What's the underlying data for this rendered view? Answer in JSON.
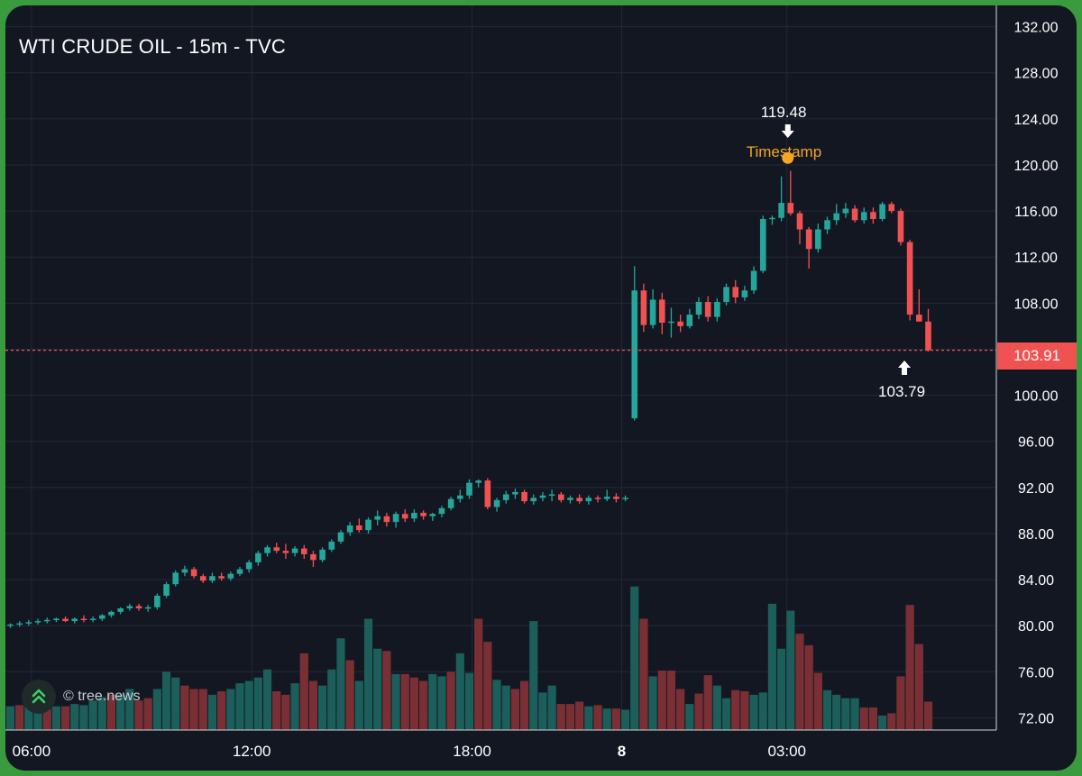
{
  "title": "WTI CRUDE OIL - 15m - TVC",
  "watermark": "© tree.news",
  "colors": {
    "background": "#131722",
    "grid": "#232836",
    "up": "#26a69a",
    "down": "#f05252",
    "vol_up": "#1b5e5a",
    "vol_down": "#7a2f35",
    "axis_text": "#ffffff",
    "timestamp": "#f5a623",
    "price_line": "#f05252"
  },
  "annotations": {
    "high_label": "119.48",
    "low_label": "103.79",
    "timestamp_label": "Timestamp"
  },
  "chart_data": {
    "type": "candlestick",
    "title": "WTI CRUDE OIL - 15m - TVC",
    "ylim": [
      70.0,
      134.0
    ],
    "y_ticks": [
      72,
      76,
      80,
      84,
      88,
      92,
      96,
      100,
      104,
      108,
      112,
      116,
      120,
      124,
      128,
      132
    ],
    "y_tick_labels": [
      "72.00",
      "76.00",
      "80.00",
      "84.00",
      "88.00",
      "92.00",
      "96.00",
      "100.00",
      "",
      "108.00",
      "112.00",
      "116.00",
      "120.00",
      "124.00",
      "128.00",
      "132.00"
    ],
    "x_labels": [
      {
        "index": 2.3,
        "label": "06:00",
        "bold": false
      },
      {
        "index": 26.3,
        "label": "12:00",
        "bold": false
      },
      {
        "index": 50.3,
        "label": "18:00",
        "bold": false
      },
      {
        "index": 66.6,
        "label": "8",
        "bold": true
      },
      {
        "index": 84.6,
        "label": "03:00",
        "bold": false
      }
    ],
    "last_price": 103.91,
    "last_price_label": "103.91",
    "high_marker": {
      "index": 84.7,
      "value": 119.48
    },
    "low_marker": {
      "index": 97.4,
      "value": 103.79
    },
    "timestamp_marker": {
      "index": 84.7,
      "value": 120.6
    },
    "candles": [
      [
        80.0,
        80.2,
        79.8,
        80.1
      ],
      [
        80.1,
        80.4,
        79.9,
        80.2
      ],
      [
        80.2,
        80.5,
        80.0,
        80.3
      ],
      [
        80.3,
        80.6,
        80.1,
        80.4
      ],
      [
        80.4,
        80.7,
        80.2,
        80.5
      ],
      [
        80.5,
        80.7,
        80.3,
        80.6
      ],
      [
        80.6,
        80.8,
        80.3,
        80.4
      ],
      [
        80.4,
        80.7,
        80.2,
        80.6
      ],
      [
        80.6,
        80.9,
        80.3,
        80.5
      ],
      [
        80.5,
        80.8,
        80.3,
        80.6
      ],
      [
        80.6,
        81.0,
        80.4,
        80.9
      ],
      [
        80.9,
        81.3,
        80.7,
        81.2
      ],
      [
        81.2,
        81.6,
        81.0,
        81.5
      ],
      [
        81.5,
        81.9,
        81.3,
        81.7
      ],
      [
        81.7,
        81.9,
        81.3,
        81.5
      ],
      [
        81.5,
        81.8,
        81.2,
        81.6
      ],
      [
        81.6,
        82.8,
        81.4,
        82.6
      ],
      [
        82.6,
        83.8,
        82.4,
        83.6
      ],
      [
        83.6,
        84.8,
        83.4,
        84.6
      ],
      [
        84.6,
        85.2,
        84.3,
        84.9
      ],
      [
        84.9,
        85.1,
        84.1,
        84.3
      ],
      [
        84.3,
        84.5,
        83.7,
        83.9
      ],
      [
        83.9,
        84.6,
        83.7,
        84.3
      ],
      [
        84.3,
        84.6,
        83.9,
        84.1
      ],
      [
        84.1,
        84.7,
        83.9,
        84.5
      ],
      [
        84.5,
        85.1,
        84.3,
        84.9
      ],
      [
        84.9,
        85.7,
        84.6,
        85.5
      ],
      [
        85.5,
        86.5,
        85.2,
        86.3
      ],
      [
        86.3,
        87.0,
        86.0,
        86.8
      ],
      [
        86.8,
        87.2,
        86.3,
        86.5
      ],
      [
        86.5,
        87.1,
        85.8,
        86.3
      ],
      [
        86.3,
        86.9,
        86.0,
        86.7
      ],
      [
        86.7,
        87.0,
        85.8,
        86.2
      ],
      [
        86.2,
        86.5,
        85.1,
        85.7
      ],
      [
        85.7,
        86.8,
        85.5,
        86.6
      ],
      [
        86.6,
        87.5,
        86.4,
        87.3
      ],
      [
        87.3,
        88.3,
        87.1,
        88.1
      ],
      [
        88.1,
        89.0,
        87.8,
        88.7
      ],
      [
        88.7,
        89.3,
        88.1,
        88.3
      ],
      [
        88.3,
        89.4,
        88.0,
        89.2
      ],
      [
        89.2,
        90.0,
        88.7,
        89.5
      ],
      [
        89.5,
        89.8,
        88.6,
        89.0
      ],
      [
        89.0,
        89.9,
        88.5,
        89.7
      ],
      [
        89.7,
        90.1,
        89.0,
        89.3
      ],
      [
        89.3,
        90.1,
        89.0,
        89.8
      ],
      [
        89.8,
        90.0,
        89.2,
        89.5
      ],
      [
        89.5,
        89.8,
        89.1,
        89.7
      ],
      [
        89.7,
        90.4,
        89.4,
        90.2
      ],
      [
        90.2,
        91.2,
        90.0,
        91.0
      ],
      [
        91.0,
        91.8,
        90.7,
        91.3
      ],
      [
        91.3,
        92.7,
        91.0,
        92.4
      ],
      [
        92.4,
        92.7,
        92.0,
        92.6
      ],
      [
        92.6,
        92.8,
        90.1,
        90.3
      ],
      [
        90.3,
        91.1,
        89.9,
        90.9
      ],
      [
        90.9,
        91.7,
        90.6,
        91.4
      ],
      [
        91.4,
        91.9,
        91.0,
        91.6
      ],
      [
        91.6,
        91.8,
        90.6,
        90.8
      ],
      [
        90.8,
        91.4,
        90.5,
        91.1
      ],
      [
        91.1,
        91.6,
        90.8,
        91.3
      ],
      [
        91.3,
        91.8,
        90.8,
        91.4
      ],
      [
        91.4,
        91.6,
        90.7,
        90.9
      ],
      [
        90.9,
        91.3,
        90.6,
        91.1
      ],
      [
        91.1,
        91.4,
        90.6,
        90.8
      ],
      [
        90.8,
        91.3,
        90.5,
        91.1
      ],
      [
        91.1,
        91.3,
        90.7,
        91.0
      ],
      [
        91.0,
        91.8,
        90.8,
        91.2
      ],
      [
        91.2,
        91.5,
        90.7,
        91.0
      ],
      [
        91.0,
        91.3,
        90.8,
        91.1
      ],
      [
        98.0,
        111.2,
        97.8,
        109.1
      ],
      [
        109.1,
        109.7,
        105.5,
        106.1
      ],
      [
        106.1,
        109.2,
        105.8,
        108.3
      ],
      [
        108.3,
        108.9,
        105.3,
        106.3
      ],
      [
        106.3,
        107.6,
        105.0,
        106.4
      ],
      [
        106.4,
        107.0,
        105.5,
        106.0
      ],
      [
        106.0,
        107.5,
        105.8,
        107.0
      ],
      [
        107.0,
        108.5,
        106.6,
        108.1
      ],
      [
        108.1,
        108.6,
        106.4,
        106.8
      ],
      [
        106.8,
        108.4,
        106.4,
        108.1
      ],
      [
        108.1,
        109.7,
        107.8,
        109.4
      ],
      [
        109.4,
        110.0,
        108.0,
        108.5
      ],
      [
        108.5,
        109.5,
        108.2,
        109.1
      ],
      [
        109.1,
        111.2,
        108.8,
        110.8
      ],
      [
        110.8,
        115.6,
        110.6,
        115.3
      ],
      [
        115.3,
        115.6,
        114.8,
        115.4
      ],
      [
        115.4,
        119.0,
        115.1,
        116.7
      ],
      [
        116.7,
        119.48,
        115.6,
        115.8
      ],
      [
        115.8,
        116.0,
        113.1,
        114.4
      ],
      [
        114.4,
        114.6,
        111.0,
        112.7
      ],
      [
        112.7,
        114.9,
        112.4,
        114.4
      ],
      [
        114.4,
        115.5,
        114.0,
        115.2
      ],
      [
        115.2,
        116.6,
        114.8,
        115.8
      ],
      [
        115.8,
        116.7,
        115.4,
        116.2
      ],
      [
        116.2,
        116.5,
        115.0,
        115.2
      ],
      [
        115.2,
        116.3,
        114.9,
        115.9
      ],
      [
        115.9,
        116.3,
        114.9,
        115.3
      ],
      [
        115.3,
        116.8,
        115.1,
        116.6
      ],
      [
        116.6,
        116.8,
        115.8,
        116.0
      ],
      [
        116.0,
        116.2,
        113.0,
        113.3
      ],
      [
        113.3,
        113.5,
        106.5,
        107.0
      ],
      [
        107.0,
        109.2,
        106.4,
        106.4
      ],
      [
        106.4,
        107.5,
        103.79,
        103.91
      ]
    ],
    "volumes": [
      [
        73.0,
        1
      ],
      [
        73.1,
        0
      ],
      [
        73.4,
        1
      ],
      [
        73.5,
        1
      ],
      [
        73.5,
        0
      ],
      [
        73.0,
        1
      ],
      [
        73.0,
        0
      ],
      [
        73.2,
        1
      ],
      [
        73.1,
        1
      ],
      [
        73.5,
        1
      ],
      [
        73.8,
        1
      ],
      [
        74.0,
        0
      ],
      [
        74.0,
        1
      ],
      [
        74.5,
        1
      ],
      [
        73.5,
        0
      ],
      [
        73.7,
        0
      ],
      [
        74.5,
        1
      ],
      [
        76.0,
        1
      ],
      [
        75.5,
        1
      ],
      [
        74.8,
        0
      ],
      [
        74.5,
        0
      ],
      [
        74.5,
        0
      ],
      [
        74.0,
        1
      ],
      [
        74.3,
        0
      ],
      [
        74.5,
        1
      ],
      [
        75.0,
        1
      ],
      [
        75.2,
        1
      ],
      [
        75.5,
        1
      ],
      [
        76.2,
        1
      ],
      [
        74.3,
        0
      ],
      [
        74.0,
        0
      ],
      [
        75.0,
        1
      ],
      [
        77.6,
        0
      ],
      [
        75.2,
        0
      ],
      [
        74.8,
        1
      ],
      [
        76.2,
        1
      ],
      [
        78.9,
        1
      ],
      [
        77.0,
        0
      ],
      [
        75.2,
        1
      ],
      [
        80.6,
        1
      ],
      [
        78.0,
        1
      ],
      [
        77.8,
        0
      ],
      [
        75.8,
        1
      ],
      [
        75.8,
        0
      ],
      [
        75.5,
        0
      ],
      [
        75.2,
        0
      ],
      [
        75.8,
        1
      ],
      [
        75.6,
        1
      ],
      [
        76.0,
        0
      ],
      [
        77.6,
        1
      ],
      [
        75.9,
        1
      ],
      [
        80.6,
        0
      ],
      [
        78.6,
        0
      ],
      [
        75.3,
        1
      ],
      [
        74.8,
        1
      ],
      [
        74.5,
        0
      ],
      [
        75.2,
        0
      ],
      [
        80.4,
        1
      ],
      [
        74.2,
        1
      ],
      [
        74.8,
        1
      ],
      [
        73.2,
        0
      ],
      [
        73.2,
        0
      ],
      [
        73.4,
        0
      ],
      [
        73.0,
        1
      ],
      [
        73.1,
        0
      ],
      [
        72.8,
        1
      ],
      [
        72.8,
        0
      ],
      [
        72.7,
        1
      ],
      [
        83.4,
        1
      ],
      [
        80.6,
        0
      ],
      [
        75.6,
        1
      ],
      [
        76.1,
        0
      ],
      [
        76.1,
        0
      ],
      [
        74.5,
        0
      ],
      [
        73.2,
        1
      ],
      [
        74.1,
        0
      ],
      [
        75.7,
        0
      ],
      [
        74.8,
        1
      ],
      [
        73.7,
        1
      ],
      [
        74.4,
        0
      ],
      [
        74.3,
        0
      ],
      [
        74.0,
        1
      ],
      [
        74.2,
        1
      ],
      [
        81.9,
        1
      ],
      [
        78.0,
        1
      ],
      [
        81.3,
        1
      ],
      [
        79.3,
        0
      ],
      [
        78.3,
        0
      ],
      [
        75.9,
        0
      ],
      [
        74.4,
        1
      ],
      [
        74.0,
        1
      ],
      [
        73.7,
        1
      ],
      [
        73.7,
        1
      ],
      [
        72.9,
        0
      ],
      [
        72.9,
        0
      ],
      [
        72.2,
        1
      ],
      [
        72.4,
        0
      ],
      [
        75.6,
        0
      ],
      [
        81.8,
        0
      ],
      [
        78.4,
        0
      ],
      [
        73.4,
        0
      ]
    ]
  }
}
